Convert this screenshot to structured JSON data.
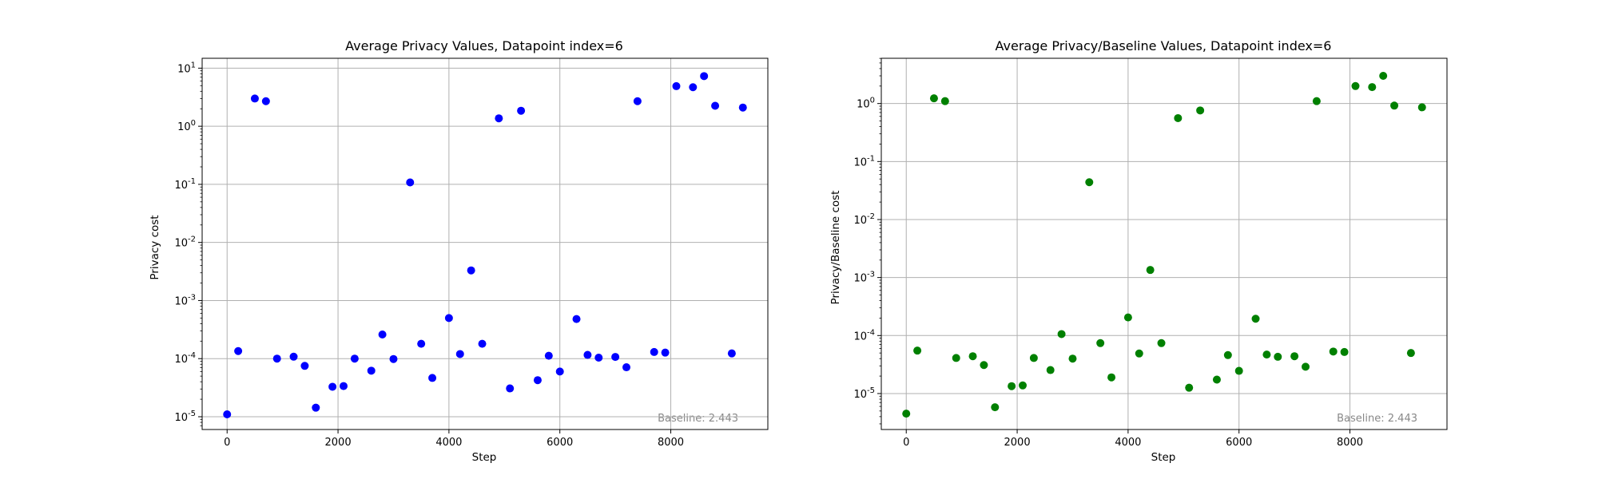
{
  "chart_data": [
    {
      "type": "scatter",
      "title": "Average Privacy Values, Datapoint index=6",
      "xlabel": "Step",
      "ylabel": "Privacy cost",
      "yscale": "log",
      "xlim": [
        -450,
        9750
      ],
      "ylim_log10": [
        -5.22,
        1.17
      ],
      "xticks": [
        0,
        2000,
        4000,
        6000,
        8000
      ],
      "xtick_labels": [
        "0",
        "2000",
        "4000",
        "6000",
        "8000"
      ],
      "yticks_log10": [
        -5,
        -4,
        -3,
        -2,
        -1,
        0,
        1
      ],
      "ytick_labels": [
        "10-5",
        "10-4",
        "10-3",
        "10-2",
        "10-1",
        "100",
        "101"
      ],
      "grid": true,
      "annotation": "Baseline: 2.443",
      "color": "#0000ff",
      "x": [
        0,
        200,
        500,
        700,
        900,
        1200,
        1400,
        1600,
        1900,
        2100,
        2300,
        2600,
        2800,
        3000,
        3300,
        3500,
        3700,
        4000,
        4200,
        4400,
        4600,
        4900,
        5100,
        5300,
        5600,
        5800,
        6000,
        6300,
        6500,
        6700,
        7000,
        7200,
        7400,
        7700,
        7900,
        8100,
        8400,
        8600,
        8800,
        9100,
        9300
      ],
      "y": [
        1.1e-05,
        0.000135,
        3.0,
        2.7,
        0.0001,
        0.000108,
        7.5e-05,
        1.43e-05,
        3.28e-05,
        3.37e-05,
        0.0001,
        6.2e-05,
        0.00026,
        9.85e-05,
        0.108,
        0.00018,
        4.65e-05,
        0.0005,
        0.00012,
        0.0033,
        0.00018,
        1.37,
        3.07e-05,
        1.85,
        4.26e-05,
        0.000112,
        6e-05,
        0.00048,
        0.000116,
        0.000104,
        0.000107,
        7.1e-05,
        2.7,
        0.00013,
        0.000127,
        4.9,
        4.7,
        7.3,
        2.25,
        0.000123,
        2.1
      ]
    },
    {
      "type": "scatter",
      "title": "Average Privacy/Baseline Values, Datapoint index=6",
      "xlabel": "Step",
      "ylabel": "Privacy/Baseline cost",
      "yscale": "log",
      "xlim": [
        -450,
        9750
      ],
      "ylim_log10": [
        -5.62,
        0.78
      ],
      "xticks": [
        0,
        2000,
        4000,
        6000,
        8000
      ],
      "xtick_labels": [
        "0",
        "2000",
        "4000",
        "6000",
        "8000"
      ],
      "yticks_log10": [
        -5,
        -4,
        -3,
        -2,
        -1,
        0
      ],
      "ytick_labels": [
        "10-5",
        "10-4",
        "10-3",
        "10-2",
        "10-1",
        "100"
      ],
      "grid": true,
      "annotation": "Baseline: 2.443",
      "color": "#008000",
      "x": [
        0,
        200,
        500,
        700,
        900,
        1200,
        1400,
        1600,
        1900,
        2100,
        2300,
        2600,
        2800,
        3000,
        3300,
        3500,
        3700,
        4000,
        4200,
        4400,
        4600,
        4900,
        5100,
        5300,
        5600,
        5800,
        6000,
        6300,
        6500,
        6700,
        7000,
        7200,
        7400,
        7700,
        7900,
        8100,
        8400,
        8600,
        8800,
        9100,
        9300
      ],
      "y": [
        4.5e-06,
        5.5e-05,
        1.23,
        1.1,
        4.1e-05,
        4.4e-05,
        3.1e-05,
        5.8e-06,
        1.34e-05,
        1.38e-05,
        4.1e-05,
        2.54e-05,
        0.000106,
        4e-05,
        0.044,
        7.4e-05,
        1.9e-05,
        0.000205,
        4.9e-05,
        0.00135,
        7.4e-05,
        0.56,
        1.26e-05,
        0.76,
        1.74e-05,
        4.6e-05,
        2.46e-05,
        0.000195,
        4.7e-05,
        4.3e-05,
        4.4e-05,
        2.9e-05,
        1.1,
        5.3e-05,
        5.2e-05,
        2.0,
        1.92,
        3.0,
        0.92,
        5e-05,
        0.86
      ]
    }
  ]
}
